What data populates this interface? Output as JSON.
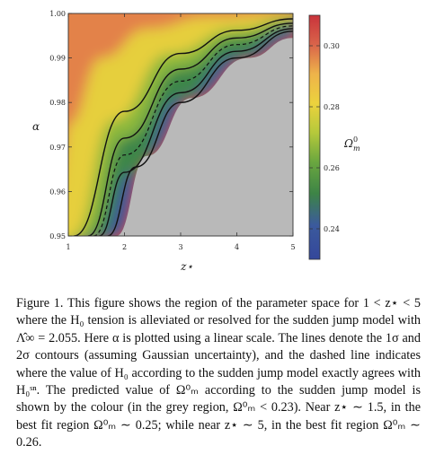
{
  "chart_data": {
    "type": "heatmap",
    "xlabel": "z⋆",
    "ylabel": "α",
    "xlim": [
      1,
      5
    ],
    "ylim": [
      0.95,
      1.0
    ],
    "x_ticks": [
      1,
      2,
      3,
      4,
      5
    ],
    "y_ticks": [
      0.95,
      0.96,
      0.97,
      0.98,
      0.99,
      1.0
    ],
    "y_tick_labels": [
      "0.95",
      "0.96",
      "0.97",
      "0.98",
      "0.99",
      "1.00"
    ],
    "colorbar": {
      "label": "Ω⁰_m",
      "range": [
        0.23,
        0.31
      ],
      "ticks": [
        0.24,
        0.26,
        0.28,
        0.3
      ],
      "tick_labels": [
        "0.24",
        "0.26",
        "0.28",
        "0.30"
      ],
      "colors": [
        "#3a4fa0",
        "#3e8a4a",
        "#b9c93e",
        "#f0d23a",
        "#d03a32"
      ]
    },
    "grey_region": "Ω⁰_m < 0.23",
    "contours": [
      {
        "name": "2σ lower",
        "style": "solid",
        "points": [
          [
            1.7,
            0.95
          ],
          [
            2.2,
            0.9655
          ],
          [
            3.0,
            0.98
          ],
          [
            4.0,
            0.99
          ],
          [
            5.0,
            0.996
          ]
        ]
      },
      {
        "name": "1σ lower",
        "style": "solid",
        "points": [
          [
            1.55,
            0.95
          ],
          [
            2.0,
            0.9643
          ],
          [
            3.0,
            0.9822
          ],
          [
            4.0,
            0.9915
          ],
          [
            5.0,
            0.9966
          ]
        ]
      },
      {
        "name": "best fit",
        "style": "dashed",
        "points": [
          [
            1.45,
            0.95
          ],
          [
            2.0,
            0.9682
          ],
          [
            3.0,
            0.9848
          ],
          [
            4.0,
            0.993
          ],
          [
            5.0,
            0.9972
          ]
        ]
      },
      {
        "name": "1σ upper",
        "style": "solid",
        "points": [
          [
            1.35,
            0.95
          ],
          [
            2.0,
            0.972
          ],
          [
            3.0,
            0.9875
          ],
          [
            4.0,
            0.9945
          ],
          [
            5.0,
            0.9978
          ]
        ]
      },
      {
        "name": "2σ upper",
        "style": "solid",
        "points": [
          [
            1.1,
            0.95
          ],
          [
            2.0,
            0.978
          ],
          [
            3.0,
            0.991
          ],
          [
            4.0,
            0.9962
          ],
          [
            5.0,
            0.9988
          ]
        ]
      }
    ],
    "color_bands": [
      {
        "name": "0.24",
        "points": [
          [
            1.85,
            0.95
          ],
          [
            2.4,
            0.968
          ],
          [
            3.2,
            0.981
          ],
          [
            4.2,
            0.99
          ],
          [
            5.0,
            0.9945
          ]
        ]
      },
      {
        "name": "0.25",
        "points": [
          [
            1.6,
            0.95
          ],
          [
            2.1,
            0.964
          ],
          [
            3.0,
            0.981
          ],
          [
            4.0,
            0.9905
          ],
          [
            5.0,
            0.9963
          ]
        ]
      },
      {
        "name": "0.26",
        "points": [
          [
            1.35,
            0.95
          ],
          [
            2.0,
            0.972
          ],
          [
            3.0,
            0.9875
          ],
          [
            4.0,
            0.9945
          ],
          [
            5.0,
            0.9978
          ]
        ]
      },
      {
        "name": "0.275",
        "points": [
          [
            1.1,
            0.95
          ],
          [
            1.8,
            0.976
          ],
          [
            2.8,
            0.991
          ],
          [
            4.0,
            0.9965
          ],
          [
            5.0,
            0.999
          ]
        ]
      },
      {
        "name": "0.30",
        "points": [
          [
            1.0,
            0.975
          ],
          [
            1.6,
            0.99
          ],
          [
            2.4,
            0.9965
          ],
          [
            3.5,
            0.9992
          ],
          [
            5.0,
            1.0
          ]
        ]
      }
    ]
  },
  "caption": {
    "text": "Figure 1. This figure shows the region of the parameter space for 1 < z⋆ < 5 where the H₀ tension is alleviated or resolved for the sudden jump model with Λ̂∞ = 2.055. Here α is plotted using a linear scale. The lines denote the 1σ and 2σ contours (assuming Gaussian uncertainty), and the dashed line indicates where the value of H₀ according to the sudden jump model exactly agrees with H₀ˢⁿ. The predicted value of Ω⁰ₘ according to the sudden jump model is shown by the colour (in the grey region, Ω⁰ₘ < 0.23). Near z⋆ ∼ 1.5, in the best fit region Ω⁰ₘ ∼ 0.25; while near z⋆ ∼ 5, in the best fit region Ω⁰ₘ ∼ 0.26."
  }
}
